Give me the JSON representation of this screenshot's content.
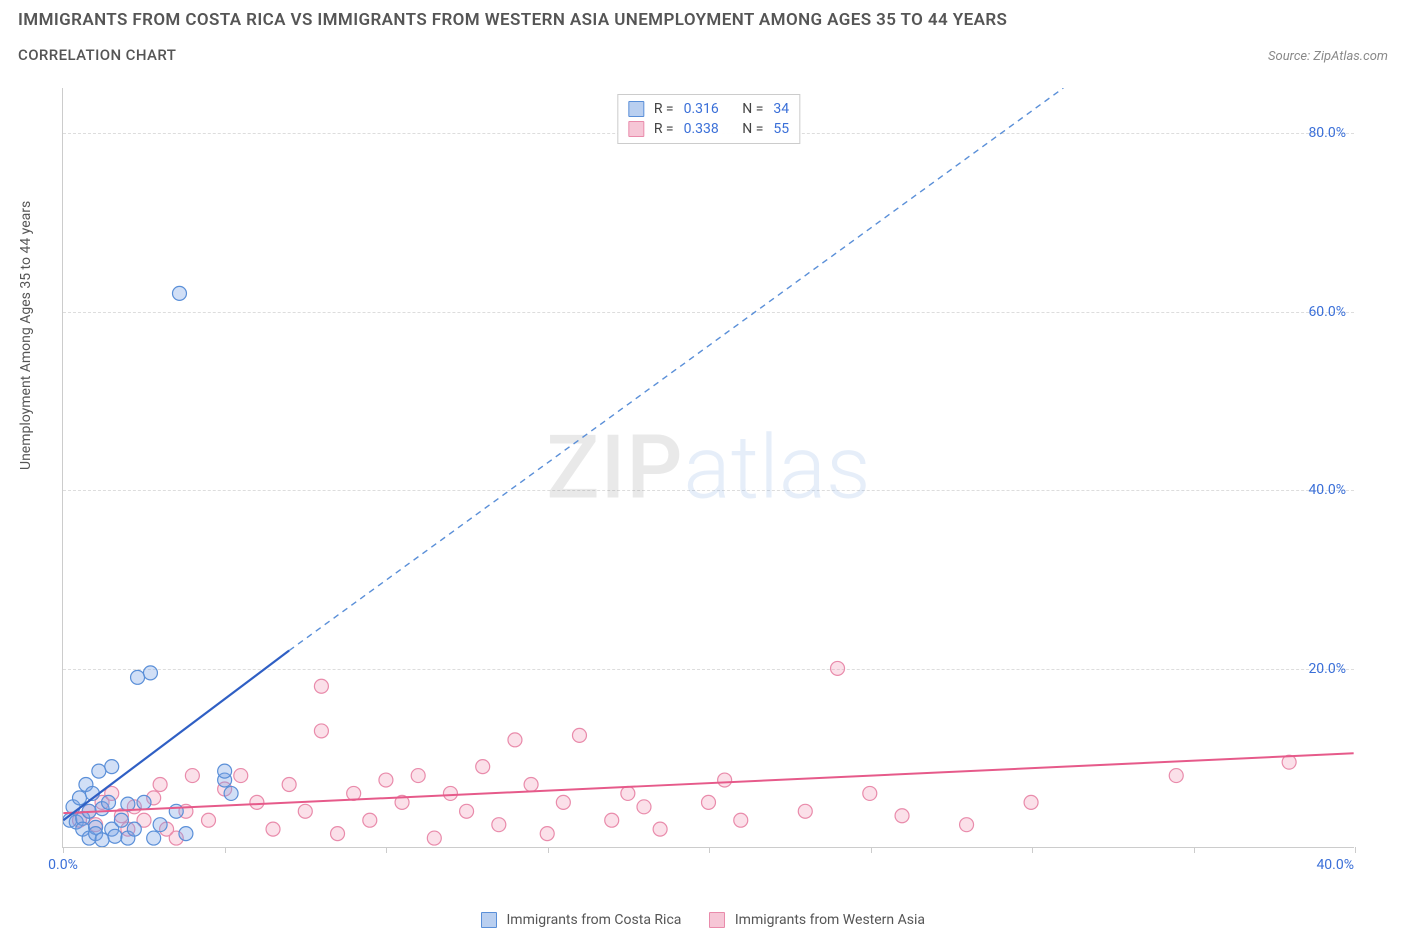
{
  "header": {
    "title": "IMMIGRANTS FROM COSTA RICA VS IMMIGRANTS FROM WESTERN ASIA UNEMPLOYMENT AMONG AGES 35 TO 44 YEARS",
    "subtitle": "CORRELATION CHART",
    "source_label": "Source: ZipAtlas.com"
  },
  "chart": {
    "type": "scatter",
    "y_axis_label": "Unemployment Among Ages 35 to 44 years",
    "xlim": [
      0,
      40
    ],
    "ylim": [
      0,
      85
    ],
    "x_ticks": [
      0,
      5,
      10,
      15,
      20,
      25,
      30,
      35,
      40
    ],
    "x_tick_labels_shown": {
      "first": "0.0%",
      "last": "40.0%"
    },
    "y_ticks": [
      20,
      40,
      60,
      80
    ],
    "y_tick_labels": [
      "20.0%",
      "40.0%",
      "60.0%",
      "80.0%"
    ],
    "grid_color": "#dddddd",
    "axis_color": "#cccccc",
    "background_color": "#ffffff",
    "tick_label_color": "#3a6fd8",
    "axis_label_color": "#555555",
    "marker_radius": 7,
    "marker_stroke_width": 1.2,
    "series": [
      {
        "name": "Immigrants from Costa Rica",
        "color_fill": "rgba(122,163,229,0.35)",
        "color_stroke": "#5a8fd8",
        "swatch_fill": "#b9cff0",
        "swatch_border": "#5a8fd8",
        "stats": {
          "R": "0.316",
          "N": "34"
        },
        "trend": {
          "solid": {
            "x1": 0,
            "y1": 3.0,
            "x2": 7.0,
            "y2": 22.0,
            "width": 2.2,
            "color": "#2f5fc4"
          },
          "dashed": {
            "x1": 7.0,
            "y1": 22.0,
            "x2": 31.0,
            "y2": 85.0,
            "width": 1.4,
            "color": "#5a8fd8",
            "dash": "6 5"
          }
        },
        "points": [
          [
            0.2,
            3.0
          ],
          [
            0.3,
            4.5
          ],
          [
            0.4,
            2.8
          ],
          [
            0.5,
            5.5
          ],
          [
            0.6,
            3.2
          ],
          [
            0.6,
            2.0
          ],
          [
            0.7,
            7.0
          ],
          [
            0.8,
            4.0
          ],
          [
            0.8,
            1.0
          ],
          [
            0.9,
            6.0
          ],
          [
            1.0,
            2.2
          ],
          [
            1.0,
            1.5
          ],
          [
            1.1,
            8.5
          ],
          [
            1.2,
            4.3
          ],
          [
            1.2,
            0.8
          ],
          [
            1.4,
            5.0
          ],
          [
            1.5,
            2.0
          ],
          [
            1.5,
            9.0
          ],
          [
            1.6,
            1.2
          ],
          [
            1.8,
            3.0
          ],
          [
            2.0,
            4.8
          ],
          [
            2.0,
            1.0
          ],
          [
            2.2,
            2.0
          ],
          [
            2.3,
            19.0
          ],
          [
            2.7,
            19.5
          ],
          [
            2.5,
            5.0
          ],
          [
            2.8,
            1.0
          ],
          [
            3.0,
            2.5
          ],
          [
            3.5,
            4.0
          ],
          [
            3.8,
            1.5
          ],
          [
            5.0,
            7.5
          ],
          [
            5.0,
            8.5
          ],
          [
            5.2,
            6.0
          ],
          [
            3.6,
            62.0
          ]
        ]
      },
      {
        "name": "Immigrants from Western Asia",
        "color_fill": "rgba(242,160,186,0.32)",
        "color_stroke": "#e98bab",
        "swatch_fill": "#f6c6d6",
        "swatch_border": "#e98bab",
        "stats": {
          "R": "0.338",
          "N": "55"
        },
        "trend": {
          "solid": {
            "x1": 0,
            "y1": 3.8,
            "x2": 40.0,
            "y2": 10.5,
            "width": 2.0,
            "color": "#e65a8a"
          }
        },
        "points": [
          [
            0.5,
            3.0
          ],
          [
            0.8,
            4.0
          ],
          [
            1.0,
            2.5
          ],
          [
            1.2,
            5.0
          ],
          [
            1.5,
            6.0
          ],
          [
            1.8,
            3.5
          ],
          [
            2.0,
            2.0
          ],
          [
            2.2,
            4.5
          ],
          [
            2.5,
            3.0
          ],
          [
            2.8,
            5.5
          ],
          [
            3.0,
            7.0
          ],
          [
            3.2,
            2.0
          ],
          [
            3.5,
            1.0
          ],
          [
            3.8,
            4.0
          ],
          [
            4.0,
            8.0
          ],
          [
            4.5,
            3.0
          ],
          [
            5.0,
            6.5
          ],
          [
            5.5,
            8.0
          ],
          [
            6.0,
            5.0
          ],
          [
            6.5,
            2.0
          ],
          [
            7.0,
            7.0
          ],
          [
            7.5,
            4.0
          ],
          [
            8.0,
            13.0
          ],
          [
            8.0,
            18.0
          ],
          [
            8.5,
            1.5
          ],
          [
            9.0,
            6.0
          ],
          [
            9.5,
            3.0
          ],
          [
            10.0,
            7.5
          ],
          [
            10.5,
            5.0
          ],
          [
            11.0,
            8.0
          ],
          [
            11.5,
            1.0
          ],
          [
            12.0,
            6.0
          ],
          [
            12.5,
            4.0
          ],
          [
            13.0,
            9.0
          ],
          [
            13.5,
            2.5
          ],
          [
            14.0,
            12.0
          ],
          [
            14.5,
            7.0
          ],
          [
            15.0,
            1.5
          ],
          [
            15.5,
            5.0
          ],
          [
            16.0,
            12.5
          ],
          [
            17.0,
            3.0
          ],
          [
            17.5,
            6.0
          ],
          [
            18.0,
            4.5
          ],
          [
            18.5,
            2.0
          ],
          [
            20.0,
            5.0
          ],
          [
            20.5,
            7.5
          ],
          [
            21.0,
            3.0
          ],
          [
            23.0,
            4.0
          ],
          [
            24.0,
            20.0
          ],
          [
            25.0,
            6.0
          ],
          [
            26.0,
            3.5
          ],
          [
            28.0,
            2.5
          ],
          [
            30.0,
            5.0
          ],
          [
            34.5,
            8.0
          ],
          [
            38.0,
            9.5
          ]
        ]
      }
    ]
  },
  "watermark": {
    "part1": "ZIP",
    "part2": "atlas"
  },
  "bottom_legend": {
    "items": [
      {
        "label": "Immigrants from Costa Rica",
        "fill": "#b9cff0",
        "border": "#5a8fd8"
      },
      {
        "label": "Immigrants from Western Asia",
        "fill": "#f6c6d6",
        "border": "#e98bab"
      }
    ]
  }
}
